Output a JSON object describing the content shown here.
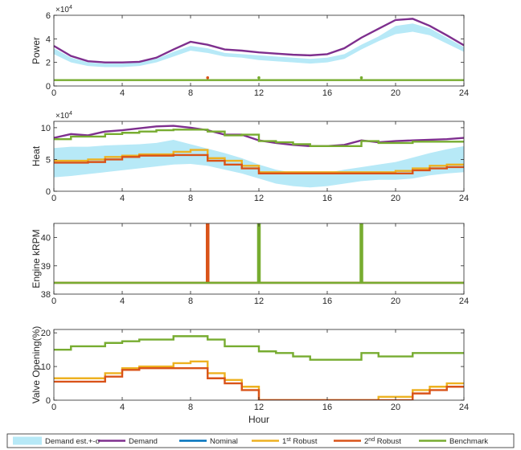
{
  "figure": {
    "legend": {
      "entries": [
        {
          "label": "Demand est.+-σ",
          "color": "#b7e9f7",
          "kind": "patch"
        },
        {
          "label": "Demand",
          "color": "#7e2f8e",
          "kind": "line"
        },
        {
          "label": "Nominal",
          "color": "#0072bd",
          "kind": "line"
        },
        {
          "label": "1st Robust",
          "label_base": "1",
          "label_sup": "st",
          "label_rest": " Robust",
          "color": "#edb120",
          "kind": "line"
        },
        {
          "label": "2nd Robust",
          "label_base": "2",
          "label_sup": "nd",
          "label_rest": " Robust",
          "color": "#d95319",
          "kind": "line"
        },
        {
          "label": "Benchmark",
          "color": "#77ac30",
          "kind": "line"
        }
      ]
    }
  },
  "chart_data": [
    {
      "type": "line",
      "ylabel": "Power",
      "xlim": [
        0,
        24
      ],
      "ylim": [
        0,
        60000
      ],
      "yticks": [
        0,
        20000,
        40000,
        60000
      ],
      "ytick_labels": [
        "0",
        "2",
        "4",
        "6"
      ],
      "exponent_label": "×10",
      "exponent_power": "4",
      "xticks": [
        0,
        4,
        8,
        12,
        16,
        20,
        24
      ],
      "band": {
        "x": [
          0,
          1,
          2,
          3,
          4,
          5,
          6,
          7,
          8,
          9,
          10,
          11,
          12,
          13,
          14,
          15,
          16,
          17,
          18,
          19,
          20,
          21,
          22,
          23,
          24
        ],
        "lower": [
          27000,
          20000,
          17000,
          16000,
          16000,
          17000,
          20000,
          25000,
          30000,
          28000,
          25000,
          24000,
          22000,
          21000,
          20000,
          19000,
          20000,
          23000,
          31000,
          38000,
          44000,
          46000,
          43000,
          36000,
          29000
        ],
        "upper": [
          32000,
          24000,
          20000,
          19000,
          19000,
          20000,
          23000,
          29000,
          34000,
          32000,
          28000,
          27000,
          26000,
          25000,
          24000,
          23000,
          24000,
          27000,
          35000,
          42000,
          51000,
          53000,
          49000,
          41000,
          33000
        ]
      },
      "series": [
        {
          "name": "Demand",
          "style": "smooth",
          "x": [
            0,
            1,
            2,
            3,
            4,
            5,
            6,
            7,
            8,
            9,
            10,
            11,
            12,
            13,
            14,
            15,
            16,
            17,
            18,
            19,
            20,
            21,
            22,
            23,
            24
          ],
          "y": [
            34000,
            25500,
            21000,
            20000,
            20000,
            20500,
            24000,
            31000,
            37500,
            35000,
            31000,
            30000,
            28500,
            27500,
            26500,
            26000,
            27000,
            32000,
            41000,
            48500,
            56000,
            57000,
            51000,
            43000,
            34500
          ]
        },
        {
          "name": "Benchmark",
          "style": "step",
          "x": [
            0,
            24
          ],
          "y": [
            5000,
            5000
          ]
        },
        {
          "name": "Benchmark",
          "style": "marker",
          "x": [
            12,
            18
          ],
          "y": [
            7000,
            7000
          ]
        },
        {
          "name": "2nd Robust",
          "style": "marker",
          "x": [
            9
          ],
          "y": [
            7000
          ]
        }
      ]
    },
    {
      "type": "line",
      "ylabel": "Heat",
      "xlim": [
        0,
        24
      ],
      "ylim": [
        0,
        110000
      ],
      "yticks": [
        0,
        50000,
        100000
      ],
      "ytick_labels": [
        "0",
        "5",
        "10"
      ],
      "exponent_label": "×10",
      "exponent_power": "4",
      "xticks": [
        0,
        4,
        8,
        12,
        16,
        20,
        24
      ],
      "band": {
        "x": [
          0,
          1,
          2,
          3,
          4,
          5,
          6,
          7,
          8,
          9,
          10,
          11,
          12,
          13,
          14,
          15,
          16,
          17,
          18,
          19,
          20,
          21,
          22,
          23,
          24
        ],
        "lower": [
          22000,
          24000,
          27000,
          30000,
          33000,
          36000,
          39000,
          42000,
          43000,
          40000,
          34000,
          28000,
          20000,
          12000,
          8000,
          6000,
          8000,
          12000,
          16000,
          18000,
          18000,
          20000,
          25000,
          28000,
          30000
        ],
        "upper": [
          68000,
          70000,
          70000,
          72000,
          73000,
          74000,
          76000,
          81000,
          74000,
          67000,
          60000,
          52000,
          42000,
          34000,
          29000,
          27000,
          29000,
          34000,
          38000,
          42000,
          46000,
          53000,
          60000,
          66000,
          71000
        ]
      },
      "series": [
        {
          "name": "Demand",
          "style": "smooth",
          "x": [
            0,
            1,
            2,
            3,
            4,
            5,
            6,
            7,
            8,
            9,
            10,
            11,
            12,
            13,
            14,
            15,
            16,
            17,
            18,
            19,
            20,
            21,
            22,
            23,
            24
          ],
          "y": [
            84000,
            90000,
            88000,
            94000,
            96000,
            99000,
            102000,
            103000,
            100000,
            96000,
            89000,
            89000,
            80000,
            76000,
            73000,
            71000,
            71000,
            73000,
            80000,
            77000,
            79000,
            80000,
            81000,
            82000,
            84000
          ]
        },
        {
          "name": "Benchmark",
          "style": "step",
          "x": [
            0,
            1,
            2,
            3,
            4,
            5,
            6,
            7,
            8,
            9,
            10,
            11,
            12,
            13,
            14,
            15,
            16,
            17,
            18,
            19,
            20,
            21,
            22,
            23
          ],
          "y": [
            82000,
            86000,
            86000,
            90000,
            92000,
            94000,
            96000,
            97000,
            97000,
            94000,
            88000,
            89000,
            79000,
            77000,
            74000,
            71000,
            71000,
            71000,
            79000,
            76000,
            76000,
            78000,
            78000,
            78000
          ]
        },
        {
          "name": "1st Robust",
          "style": "step",
          "x": [
            0,
            1,
            2,
            3,
            4,
            5,
            6,
            7,
            8,
            9,
            10,
            11,
            12,
            13,
            14,
            15,
            16,
            17,
            18,
            19,
            20,
            21,
            22,
            23
          ],
          "y": [
            48000,
            48000,
            50000,
            54000,
            56000,
            58000,
            58000,
            62000,
            65000,
            52000,
            48000,
            40000,
            30000,
            30000,
            30000,
            30000,
            30000,
            30000,
            30000,
            30000,
            32000,
            36000,
            40000,
            42000
          ]
        },
        {
          "name": "2nd Robust",
          "style": "step",
          "x": [
            0,
            1,
            2,
            3,
            4,
            5,
            6,
            7,
            8,
            9,
            10,
            11,
            12,
            13,
            14,
            15,
            16,
            17,
            18,
            19,
            20,
            21,
            22,
            23
          ],
          "y": [
            45000,
            45000,
            46000,
            50000,
            54000,
            56000,
            56000,
            57000,
            57000,
            48000,
            42000,
            36000,
            28000,
            28000,
            28000,
            28000,
            28000,
            28000,
            28000,
            28000,
            28000,
            33000,
            36000,
            38000
          ]
        }
      ]
    },
    {
      "type": "line",
      "ylabel": "Engine kRPM",
      "xlim": [
        0,
        24
      ],
      "ylim": [
        38,
        40.5
      ],
      "yticks": [
        38,
        39,
        40
      ],
      "ytick_labels": [
        "38",
        "39",
        "40"
      ],
      "xticks": [
        0,
        4,
        8,
        12,
        16,
        20,
        24
      ],
      "series": [
        {
          "name": "Nominal",
          "style": "step",
          "x": [
            0,
            24
          ],
          "y": [
            38.4,
            38.4
          ]
        },
        {
          "name": "1st Robust",
          "style": "segments",
          "x": [
            0,
            24
          ],
          "y": [
            38.4,
            38.4
          ]
        },
        {
          "name": "2nd Robust",
          "style": "segments",
          "x": [
            0,
            8.95,
            8.95,
            9.05,
            9.05,
            24
          ],
          "y": [
            38.4,
            38.4,
            40.5,
            40.5,
            38.4,
            38.4
          ]
        },
        {
          "name": "Benchmark",
          "style": "segments",
          "x": [
            0,
            11.95,
            11.95,
            12.05,
            12.05,
            17.95,
            17.95,
            18.05,
            18.05,
            24
          ],
          "y": [
            38.4,
            38.4,
            40.5,
            40.5,
            38.4,
            38.4,
            40.5,
            40.5,
            38.4,
            38.4
          ]
        }
      ]
    },
    {
      "type": "line",
      "ylabel": "Valve Opening(%)",
      "xlabel": "Hour",
      "xlim": [
        0,
        24
      ],
      "ylim": [
        0,
        21
      ],
      "yticks": [
        0,
        10,
        20
      ],
      "ytick_labels": [
        "0",
        "10",
        "20"
      ],
      "xticks": [
        0,
        4,
        8,
        12,
        16,
        20,
        24
      ],
      "series": [
        {
          "name": "Benchmark",
          "style": "step",
          "x": [
            0,
            1,
            2,
            3,
            4,
            5,
            6,
            7,
            8,
            9,
            10,
            11,
            12,
            13,
            14,
            15,
            16,
            17,
            18,
            19,
            20,
            21,
            22,
            23
          ],
          "y": [
            15,
            16,
            16,
            17,
            17.5,
            18,
            18,
            19,
            19,
            18,
            16,
            16,
            14.5,
            14,
            13,
            12,
            12,
            12,
            14,
            13,
            13,
            14,
            14,
            14
          ]
        },
        {
          "name": "1st Robust",
          "style": "step",
          "x": [
            0,
            1,
            2,
            3,
            4,
            5,
            6,
            7,
            8,
            9,
            10,
            11,
            12,
            13,
            14,
            15,
            16,
            17,
            18,
            19,
            20,
            21,
            22,
            23
          ],
          "y": [
            6.5,
            6.5,
            6.5,
            8,
            9.5,
            10,
            10,
            11,
            11.5,
            8,
            6,
            4,
            0,
            0,
            0,
            0,
            0,
            0,
            0,
            1,
            1,
            3,
            4,
            5
          ]
        },
        {
          "name": "2nd Robust",
          "style": "step",
          "x": [
            0,
            1,
            2,
            3,
            4,
            5,
            6,
            7,
            8,
            9,
            10,
            11,
            12,
            13,
            14,
            15,
            16,
            17,
            18,
            19,
            20,
            21,
            22,
            23
          ],
          "y": [
            5.5,
            5.5,
            5.5,
            7,
            9,
            9.5,
            9.5,
            9.5,
            9.5,
            6.5,
            5,
            3,
            0,
            0,
            0,
            0,
            0,
            0,
            0,
            0,
            0,
            2,
            3,
            4
          ]
        }
      ]
    }
  ]
}
